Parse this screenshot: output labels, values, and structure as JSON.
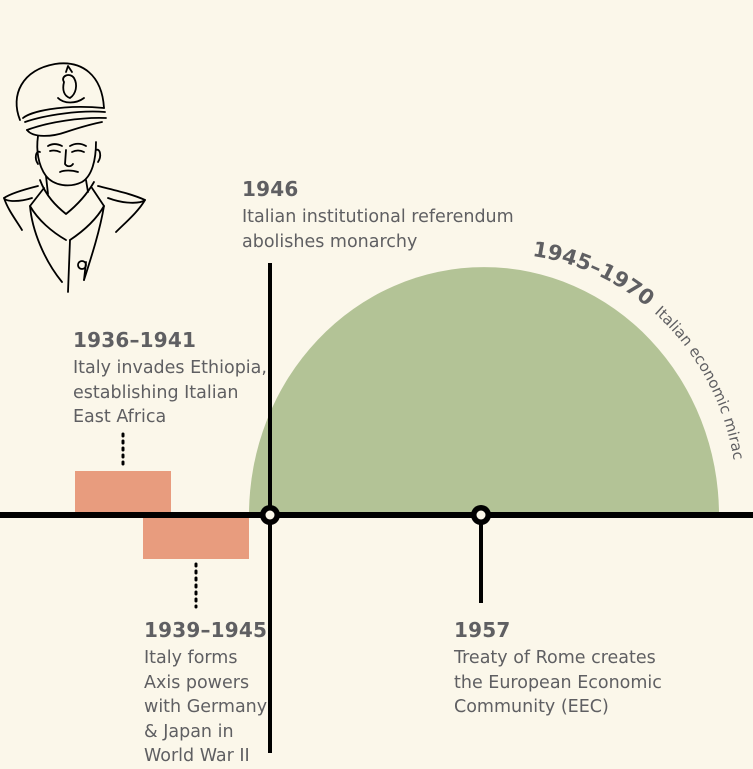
{
  "events": {
    "e1946": {
      "year": "1946",
      "text": "Italian institutional referendum abolishes monarchy"
    },
    "e1936": {
      "year": "1936–1941",
      "text": "Italy invades Ethiopia, establishing Italian East Africa"
    },
    "e1939": {
      "year": "1939–1945",
      "text": "Italy forms Axis powers with Germany & Japan in World War II"
    },
    "e1957": {
      "year": "1957",
      "text": "Treaty of Rome creates the European Economic Community (EEC)"
    }
  },
  "era": {
    "years": "1945–1970",
    "text": "Italian economic miracle"
  },
  "colors": {
    "background": "#fbf7ea",
    "axis": "#000000",
    "era_fill": "#b3c396",
    "bar_fill": "#e89c7e",
    "text": "#5f5f62"
  },
  "illustration": {
    "icon": "military-officer-portrait-sketch"
  }
}
